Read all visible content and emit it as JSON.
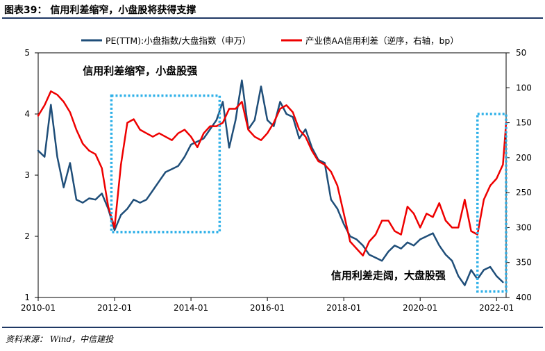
{
  "header": {
    "title": "图表39：  信用利差缩窄，小盘股将获得支撑"
  },
  "footer": {
    "source": "资料来源：  Wind，中信建投"
  },
  "chart_data": {
    "type": "line",
    "legend": {
      "placement": "top"
    },
    "x_ticks": [
      "2010-01",
      "2012-01",
      "2014-01",
      "2016-01",
      "2018-01",
      "2020-01",
      "2022-01"
    ],
    "xlim": [
      "2010-01",
      "2022-04"
    ],
    "y_left": {
      "ticks": [
        "1",
        "2",
        "3",
        "4",
        "5"
      ],
      "lim": [
        1,
        5
      ]
    },
    "y_right": {
      "ticks": [
        "50",
        "100",
        "150",
        "200",
        "250",
        "300",
        "350",
        "400"
      ],
      "lim": [
        50,
        400
      ],
      "inverted": true
    },
    "annotations": [
      {
        "text": "信用利差缩窄，小盘股强",
        "x": "2011-03",
        "y": 4.65
      },
      {
        "text": "信用利差走阔，大盘股强",
        "x": "2017-09",
        "y": 1.3
      }
    ],
    "highlight_boxes": [
      {
        "x": [
          "2011-12",
          "2014-10"
        ],
        "y": [
          2.07,
          4.3
        ]
      },
      {
        "x": [
          "2021-07",
          "2022-04"
        ],
        "y": [
          1.1,
          4.0
        ]
      }
    ],
    "colors": {
      "pe_series": "#1f4e79",
      "spread_series": "#ee0000",
      "highlight": "#2eb0e8",
      "rule": "#1f3864"
    },
    "series": [
      {
        "name": "PE(TTM):小盘指数/大盘指数（申万）",
        "axis": "left",
        "x": [
          "2010-01",
          "2010-03",
          "2010-05",
          "2010-07",
          "2010-09",
          "2010-11",
          "2011-01",
          "2011-03",
          "2011-05",
          "2011-07",
          "2011-09",
          "2011-11",
          "2012-01",
          "2012-03",
          "2012-05",
          "2012-07",
          "2012-09",
          "2012-11",
          "2013-01",
          "2013-03",
          "2013-05",
          "2013-07",
          "2013-09",
          "2013-11",
          "2014-01",
          "2014-03",
          "2014-05",
          "2014-07",
          "2014-09",
          "2014-11",
          "2015-01",
          "2015-03",
          "2015-05",
          "2015-07",
          "2015-09",
          "2015-11",
          "2016-01",
          "2016-03",
          "2016-05",
          "2016-07",
          "2016-09",
          "2016-11",
          "2017-01",
          "2017-03",
          "2017-05",
          "2017-07",
          "2017-09",
          "2017-11",
          "2018-01",
          "2018-03",
          "2018-05",
          "2018-07",
          "2018-09",
          "2018-11",
          "2019-01",
          "2019-03",
          "2019-05",
          "2019-07",
          "2019-09",
          "2019-11",
          "2020-01",
          "2020-03",
          "2020-05",
          "2020-07",
          "2020-09",
          "2020-11",
          "2021-01",
          "2021-03",
          "2021-05",
          "2021-07",
          "2021-09",
          "2021-11",
          "2022-01",
          "2022-03"
        ],
        "values": [
          3.4,
          3.3,
          4.15,
          3.3,
          2.8,
          3.2,
          2.6,
          2.55,
          2.62,
          2.6,
          2.7,
          2.45,
          2.1,
          2.35,
          2.45,
          2.6,
          2.55,
          2.6,
          2.75,
          2.9,
          3.05,
          3.1,
          3.15,
          3.3,
          3.5,
          3.55,
          3.6,
          3.75,
          3.9,
          4.2,
          3.45,
          3.9,
          4.55,
          3.75,
          3.9,
          4.45,
          3.9,
          3.8,
          4.2,
          4.0,
          3.95,
          3.6,
          3.75,
          3.45,
          3.25,
          3.2,
          2.6,
          2.45,
          2.2,
          2.0,
          1.95,
          1.85,
          1.7,
          1.65,
          1.6,
          1.75,
          1.85,
          1.8,
          1.9,
          1.85,
          1.95,
          2.0,
          2.05,
          1.85,
          1.7,
          1.6,
          1.35,
          1.2,
          1.45,
          1.3,
          1.45,
          1.5,
          1.35,
          1.25
        ]
      },
      {
        "name": "产业债AA信用利差（逆序，右轴，bp）",
        "axis": "right",
        "x": [
          "2010-01",
          "2010-03",
          "2010-05",
          "2010-07",
          "2010-09",
          "2010-11",
          "2011-01",
          "2011-03",
          "2011-05",
          "2011-07",
          "2011-09",
          "2011-11",
          "2012-01",
          "2012-03",
          "2012-05",
          "2012-07",
          "2012-09",
          "2012-11",
          "2013-01",
          "2013-03",
          "2013-05",
          "2013-07",
          "2013-09",
          "2013-11",
          "2014-01",
          "2014-03",
          "2014-05",
          "2014-07",
          "2014-09",
          "2014-11",
          "2015-01",
          "2015-03",
          "2015-05",
          "2015-07",
          "2015-09",
          "2015-11",
          "2016-01",
          "2016-03",
          "2016-05",
          "2016-07",
          "2016-09",
          "2016-11",
          "2017-01",
          "2017-03",
          "2017-05",
          "2017-07",
          "2017-09",
          "2017-11",
          "2018-01",
          "2018-03",
          "2018-05",
          "2018-07",
          "2018-09",
          "2018-11",
          "2019-01",
          "2019-03",
          "2019-05",
          "2019-07",
          "2019-09",
          "2019-11",
          "2020-01",
          "2020-03",
          "2020-05",
          "2020-07",
          "2020-09",
          "2020-11",
          "2021-01",
          "2021-03",
          "2021-05",
          "2021-07",
          "2021-09",
          "2021-11",
          "2022-01",
          "2022-03",
          "2022-04"
        ],
        "values": [
          140,
          125,
          105,
          110,
          120,
          135,
          160,
          180,
          190,
          195,
          215,
          270,
          300,
          210,
          150,
          145,
          160,
          165,
          170,
          165,
          170,
          175,
          165,
          160,
          170,
          185,
          165,
          155,
          155,
          150,
          130,
          130,
          120,
          160,
          170,
          175,
          165,
          150,
          130,
          125,
          135,
          160,
          170,
          190,
          205,
          210,
          220,
          240,
          280,
          320,
          330,
          340,
          320,
          310,
          290,
          290,
          305,
          310,
          270,
          280,
          300,
          280,
          285,
          265,
          290,
          300,
          300,
          260,
          305,
          310,
          260,
          240,
          230,
          210,
          150
        ]
      }
    ]
  }
}
